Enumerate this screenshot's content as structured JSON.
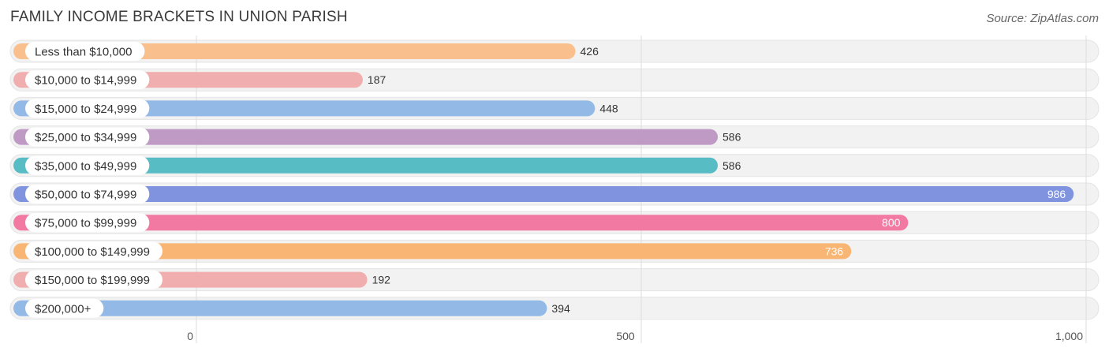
{
  "header": {
    "title": "FAMILY INCOME BRACKETS IN UNION PARISH",
    "source": "Source: ZipAtlas.com"
  },
  "chart_data": {
    "type": "bar",
    "orientation": "horizontal",
    "title": "FAMILY INCOME BRACKETS IN UNION PARISH",
    "xlabel": "",
    "ylabel": "",
    "xlim": [
      0,
      1000
    ],
    "grid": true,
    "categories": [
      "Less than $10,000",
      "$10,000 to $14,999",
      "$15,000 to $24,999",
      "$25,000 to $34,999",
      "$35,000 to $49,999",
      "$50,000 to $74,999",
      "$75,000 to $99,999",
      "$100,000 to $149,999",
      "$150,000 to $199,999",
      "$200,000+"
    ],
    "values": [
      426,
      187,
      448,
      586,
      586,
      986,
      800,
      736,
      192,
      394
    ],
    "value_labels": [
      "426",
      "187",
      "448",
      "586",
      "586",
      "986",
      "800",
      "736",
      "192",
      "394"
    ],
    "colors": [
      "#f9c08e",
      "#f1aeae",
      "#93b9e6",
      "#bf9ac5",
      "#58bcc5",
      "#7f93de",
      "#f27aa2",
      "#f9b574",
      "#f1aeae",
      "#93b9e6"
    ],
    "x_ticks": [
      {
        "value": 0,
        "label": "0"
      },
      {
        "value": 500,
        "label": "500"
      },
      {
        "value": 1000,
        "label": "1,000"
      }
    ]
  }
}
